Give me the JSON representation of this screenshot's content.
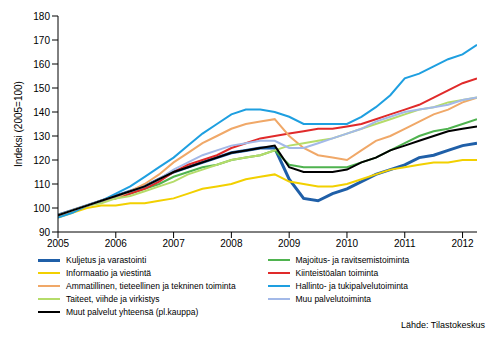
{
  "chart_data": {
    "type": "line",
    "ylabel": "Indeksi (2005=100)",
    "source": "Lähde: Tilastokeskus",
    "x": [
      2005,
      2005.25,
      2005.5,
      2005.75,
      2006,
      2006.25,
      2006.5,
      2006.75,
      2007,
      2007.25,
      2007.5,
      2007.75,
      2008,
      2008.25,
      2008.5,
      2008.75,
      2009,
      2009.25,
      2009.5,
      2009.75,
      2010,
      2010.25,
      2010.5,
      2010.75,
      2011,
      2011.25,
      2011.5,
      2011.75,
      2012,
      2012.25
    ],
    "xlim": [
      2005,
      2012.25
    ],
    "xticks": [
      2005,
      2006,
      2007,
      2008,
      2009,
      2010,
      2011,
      2012
    ],
    "ylim": [
      90,
      180
    ],
    "yticks": [
      90,
      100,
      110,
      120,
      130,
      140,
      150,
      160,
      170,
      180
    ],
    "grid": false,
    "legend": "bottom",
    "series": [
      {
        "name": "Kuljetus ja varastointi",
        "color": "#1f5fa8",
        "values": [
          97,
          99,
          101,
          103,
          105,
          107,
          109,
          112,
          115,
          117,
          119,
          121,
          123,
          124,
          125,
          125,
          112,
          104,
          103,
          106,
          108,
          111,
          114,
          116,
          118,
          121,
          122,
          124,
          126,
          127
        ]
      },
      {
        "name": "Majoitus- ja ravitsemistoiminta",
        "color": "#4fb34f",
        "values": [
          97,
          99,
          101,
          103,
          104,
          106,
          108,
          110,
          113,
          115,
          117,
          118,
          120,
          121,
          122,
          124,
          118,
          117,
          117,
          117,
          117,
          119,
          121,
          124,
          127,
          130,
          132,
          133,
          135,
          137
        ]
      },
      {
        "name": "Informaatio ja viestintä",
        "color": "#f2d000",
        "values": [
          96,
          98,
          100,
          101,
          101,
          102,
          102,
          103,
          104,
          106,
          108,
          109,
          110,
          112,
          113,
          114,
          111,
          110,
          109,
          109,
          110,
          112,
          114,
          116,
          117,
          118,
          119,
          119,
          120,
          120
        ]
      },
      {
        "name": "Kiinteistöalan toiminta",
        "color": "#e02a2a",
        "values": [
          97,
          99,
          101,
          103,
          104,
          106,
          108,
          111,
          115,
          118,
          120,
          122,
          125,
          127,
          129,
          130,
          131,
          132,
          133,
          133,
          134,
          135,
          137,
          139,
          141,
          143,
          146,
          149,
          152,
          154
        ]
      },
      {
        "name": "Ammatillinen, tieteellinen ja tekninen toiminta",
        "color": "#f0a868",
        "values": [
          97,
          99,
          101,
          103,
          104,
          107,
          110,
          114,
          119,
          123,
          127,
          130,
          133,
          135,
          136,
          137,
          130,
          125,
          122,
          121,
          120,
          124,
          128,
          130,
          133,
          136,
          139,
          141,
          144,
          146
        ]
      },
      {
        "name": "Hallinto- ja tukipalvelutoiminta",
        "color": "#1e9fe0",
        "values": [
          96,
          98,
          101,
          103,
          106,
          109,
          113,
          117,
          121,
          126,
          131,
          135,
          139,
          141,
          141,
          140,
          138,
          135,
          135,
          135,
          135,
          138,
          142,
          147,
          154,
          156,
          159,
          162,
          164,
          168
        ]
      },
      {
        "name": "Taiteet, viihde ja virkistys",
        "color": "#b5dc6a",
        "values": [
          97,
          99,
          101,
          102,
          104,
          105,
          107,
          109,
          111,
          114,
          116,
          118,
          120,
          121,
          122,
          124,
          126,
          127,
          128,
          129,
          131,
          133,
          135,
          137,
          139,
          141,
          142,
          144,
          145,
          146
        ]
      },
      {
        "name": "Muu palvelutoiminta",
        "color": "#a3b9e8",
        "values": [
          97,
          99,
          101,
          103,
          105,
          107,
          109,
          112,
          116,
          119,
          122,
          124,
          126,
          127,
          128,
          128,
          125,
          125,
          127,
          129,
          131,
          133,
          136,
          138,
          140,
          141,
          142,
          143,
          145,
          146
        ]
      },
      {
        "name": "Muut palvelut yhteensä (pl.kauppa)",
        "color": "#000000",
        "values": [
          97,
          99,
          101,
          103,
          105,
          107,
          109,
          112,
          115,
          117,
          119,
          121,
          123,
          124,
          125,
          126,
          117,
          115,
          115,
          115,
          116,
          119,
          121,
          124,
          126,
          128,
          130,
          132,
          133,
          134
        ]
      }
    ]
  }
}
